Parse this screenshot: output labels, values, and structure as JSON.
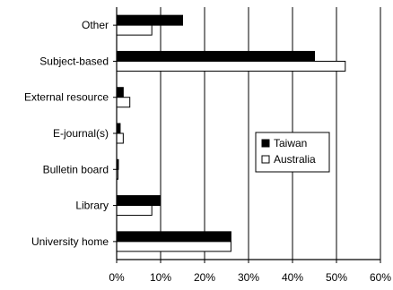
{
  "chart_data": {
    "type": "bar",
    "orientation": "horizontal",
    "categories": [
      "Other",
      "Subject-based",
      "External resource",
      "E-journal(s)",
      "Bulletin board",
      "Library",
      "University home"
    ],
    "series": [
      {
        "name": "Taiwan",
        "values": [
          15,
          45,
          1.5,
          0.8,
          0.4,
          10,
          26
        ],
        "color": "#000000"
      },
      {
        "name": "Australia",
        "values": [
          8,
          52,
          3,
          1.5,
          0.3,
          8,
          26
        ],
        "color": "#ffffff"
      }
    ],
    "x_ticks": [
      "0%",
      "10%",
      "20%",
      "30%",
      "40%",
      "50%",
      "60%"
    ],
    "xlim": [
      0,
      60
    ],
    "grid": "vertical",
    "legend_position": "center-right",
    "title": "",
    "xlabel": "",
    "ylabel": ""
  }
}
